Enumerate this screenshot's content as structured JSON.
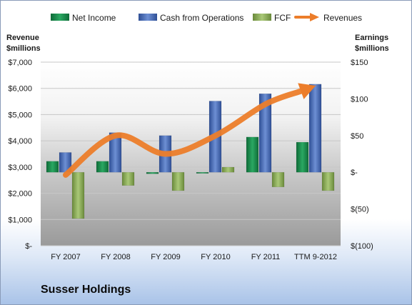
{
  "company_name": "Susser Holdings",
  "chart_data": {
    "type": "bar",
    "categories": [
      "FY 2007",
      "FY 2008",
      "FY 2009",
      "FY 2010",
      "FY 2011",
      "TTM 9-2012"
    ],
    "left_axis": {
      "title_line1": "Revenue",
      "title_line2": "$millions",
      "ylim": [
        0,
        7000
      ],
      "ticks": [
        0,
        1000,
        2000,
        3000,
        4000,
        5000,
        6000,
        7000
      ],
      "tick_labels": [
        "$-",
        "$1,000",
        "$2,000",
        "$3,000",
        "$4,000",
        "$5,000",
        "$6,000",
        "$7,000"
      ]
    },
    "right_axis": {
      "title_line1": "Earnings",
      "title_line2": "$millions",
      "ylim": [
        -100,
        150
      ],
      "ticks": [
        -100,
        -50,
        0,
        50,
        100,
        150
      ],
      "tick_labels": [
        "$(100)",
        "$(50)",
        "$-",
        "$50",
        "$100",
        "$150"
      ]
    },
    "series": [
      {
        "name": "Net Income",
        "axis": "right",
        "kind": "bar",
        "color": "#1e8b4f",
        "values": [
          15,
          15,
          -2,
          -1,
          48,
          41
        ]
      },
      {
        "name": "Cash from Operations",
        "axis": "right",
        "kind": "bar",
        "color": "#4a6db8",
        "values": [
          27,
          54,
          50,
          97,
          107,
          120
        ]
      },
      {
        "name": "FCF",
        "axis": "right",
        "kind": "bar",
        "color": "#8cae57",
        "values": [
          -63,
          -18,
          -25,
          7,
          -20,
          -25
        ]
      },
      {
        "name": "Revenues",
        "axis": "left",
        "kind": "line",
        "color": "#ec7d2a",
        "values": [
          2700,
          4200,
          3500,
          4200,
          5400,
          6100
        ]
      }
    ],
    "grid": true,
    "legend_position": "top"
  }
}
